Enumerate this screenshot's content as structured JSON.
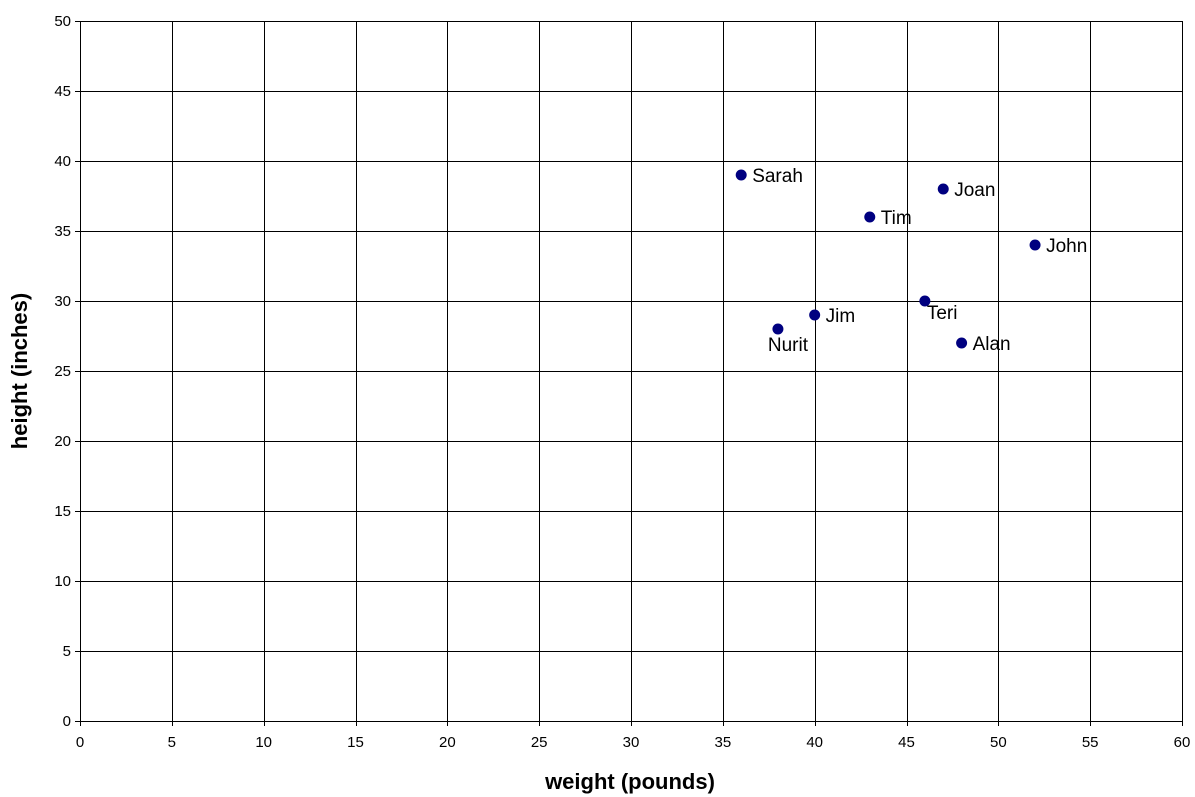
{
  "chart_data": {
    "type": "scatter",
    "xlabel": "weight (pounds)",
    "ylabel": "height (inches)",
    "xlim": [
      0,
      60
    ],
    "ylim": [
      0,
      50
    ],
    "x_ticks": [
      0,
      5,
      10,
      15,
      20,
      25,
      30,
      35,
      40,
      45,
      50,
      55,
      60
    ],
    "y_ticks": [
      0,
      5,
      10,
      15,
      20,
      25,
      30,
      35,
      40,
      45,
      50
    ],
    "grid": true,
    "legend": "none",
    "marker_color": "#000080",
    "points": [
      {
        "label": "Sarah",
        "x": 36,
        "y": 39
      },
      {
        "label": "Joan",
        "x": 47,
        "y": 38
      },
      {
        "label": "Tim",
        "x": 43,
        "y": 36
      },
      {
        "label": "John",
        "x": 52,
        "y": 34
      },
      {
        "label": "Teri",
        "x": 46,
        "y": 30
      },
      {
        "label": "Jim",
        "x": 40,
        "y": 29
      },
      {
        "label": "Nurit",
        "x": 38,
        "y": 28
      },
      {
        "label": "Alan",
        "x": 48,
        "y": 27
      }
    ]
  }
}
